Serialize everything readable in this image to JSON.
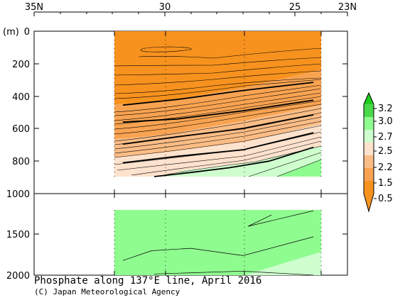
{
  "chart_data": {
    "type": "heatmap",
    "title": "Phosphate along 137°E line, April 2016",
    "credit": "(C) Japan Meteorological Agency",
    "xlabel": "",
    "ylabel": "(m)",
    "x_ticks": [
      "35N",
      "30",
      "25",
      "23N"
    ],
    "x_tick_values": [
      35,
      30,
      25,
      23
    ],
    "xlim": [
      35,
      23
    ],
    "upper_panel": {
      "ylim": [
        0,
        1000
      ],
      "y_ticks": [
        "0",
        "200",
        "400",
        "600",
        "800",
        "1000"
      ],
      "y_tick_values": [
        0,
        200,
        400,
        600,
        800,
        1000
      ]
    },
    "lower_panel": {
      "ylim": [
        1000,
        2000
      ],
      "y_ticks": [
        "1500",
        "2000"
      ],
      "y_tick_values": [
        1500,
        2000
      ]
    },
    "data_extent": {
      "lat_north": 31.6,
      "lat_south": 24.3,
      "upper_depth_max": 900,
      "lower_depth_min": 1200
    },
    "colorbar": {
      "labels": [
        "3.2",
        "3.0",
        "2.7",
        "2.5",
        "2.2",
        "1.5",
        "0.5"
      ],
      "bins": [
        {
          "range": "> 3.2",
          "color": "#1fcd1f"
        },
        {
          "range": "3.0 – 3.2",
          "color": "#49d849"
        },
        {
          "range": "2.7 – 3.0",
          "color": "#8ffc8f"
        },
        {
          "range": "2.5 – 2.7",
          "color": "#cefece"
        },
        {
          "range": "2.2 – 2.5",
          "color": "#fde2cd"
        },
        {
          "range": "1.5 – 2.2",
          "color": "#fbbd86"
        },
        {
          "range": "0.5 – 1.5",
          "color": "#f8a351"
        },
        {
          "range": "< 0.5",
          "color": "#f7921e"
        }
      ]
    },
    "thick_contours_upper": [
      {
        "x": [
          31.6,
          29.5,
          27.0,
          24.3
        ],
        "depth": [
          455,
          420,
          365,
          315
        ]
      },
      {
        "x": [
          31.6,
          29.5,
          27.0,
          24.3
        ],
        "depth": [
          560,
          540,
          490,
          425
        ]
      },
      {
        "x": [
          31.6,
          29.5,
          27.0,
          24.3
        ],
        "depth": [
          695,
          650,
          600,
          515
        ]
      },
      {
        "x": [
          31.6,
          29.5,
          27.0,
          24.3
        ],
        "depth": [
          810,
          770,
          730,
          625
        ]
      },
      {
        "x": [
          30.4,
          29.0,
          27.5,
          26.0,
          24.3
        ],
        "depth": [
          895,
          870,
          840,
          800,
          715
        ]
      }
    ],
    "lower_contours": [
      {
        "x": [
          31.6,
          30.5,
          29.0,
          27.0,
          24.3
        ],
        "depth": [
          1820,
          1700,
          1670,
          1760,
          1530
        ]
      },
      {
        "x": [
          25.9,
          26.8,
          24.3
        ],
        "depth": [
          1260,
          1400,
          1210
        ]
      },
      {
        "x": [
          30.4,
          27.0,
          24.3
        ],
        "depth": [
          1985,
          1950,
          2000
        ]
      }
    ]
  }
}
